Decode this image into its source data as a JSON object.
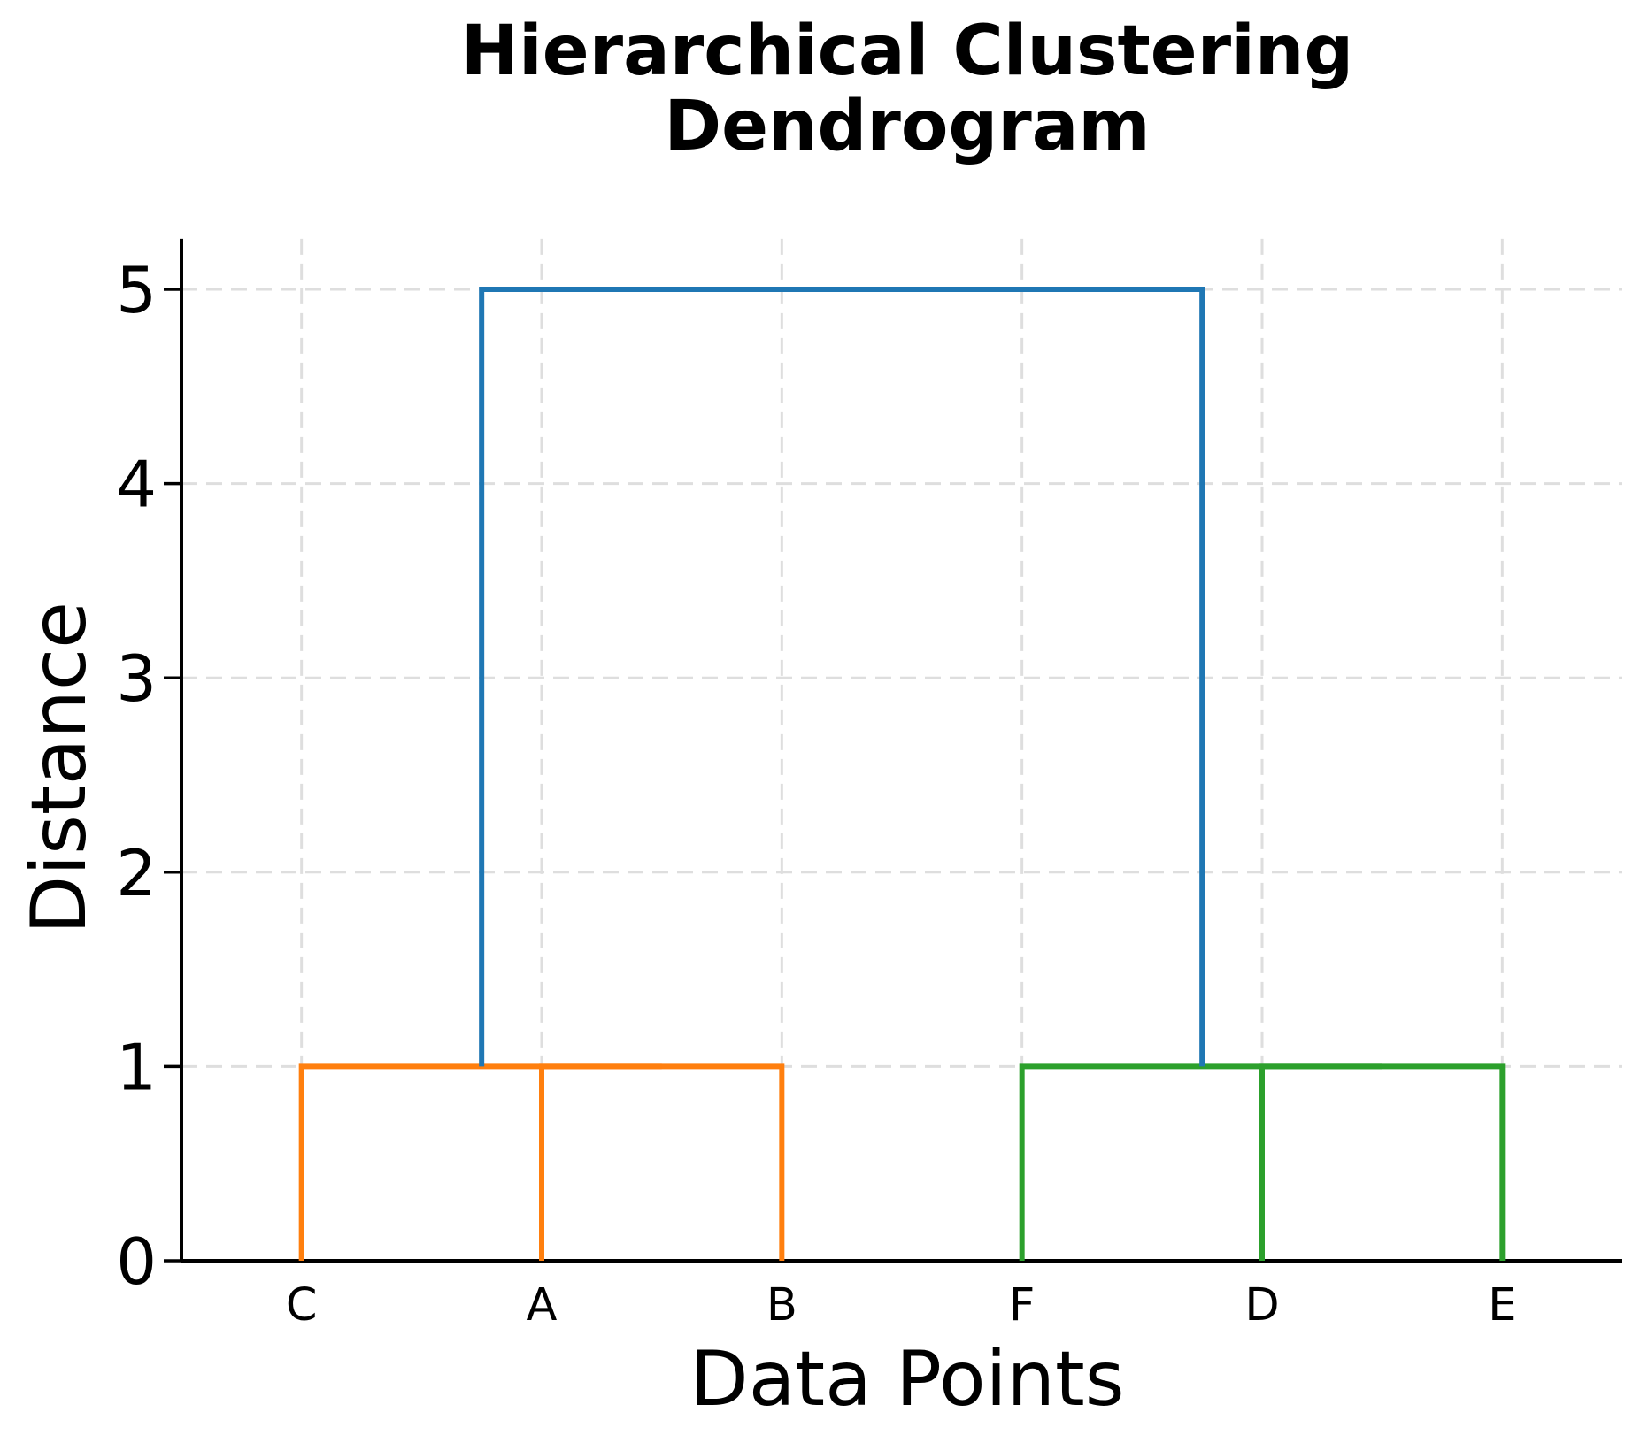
{
  "figure": {
    "background": "#ffffff"
  },
  "chart_data": {
    "type": "dendrogram",
    "title": "Hierarchical Clustering Dendrogram",
    "title_lines": [
      "Hierarchical Clustering",
      "Dendrogram"
    ],
    "xlabel": "Data Points",
    "ylabel": "Distance",
    "leaves": [
      "C",
      "A",
      "B",
      "F",
      "D",
      "E"
    ],
    "leaf_positions": [
      5,
      15,
      25,
      35,
      45,
      55
    ],
    "xlim": [
      0,
      60
    ],
    "ylim": [
      0,
      5.26
    ],
    "yticks": [
      0,
      1,
      2,
      3,
      4,
      5
    ],
    "grid": {
      "show": true,
      "style": "dashed",
      "color": "#dedede"
    },
    "merge_events": [
      {
        "merge": [
          "A",
          "B"
        ],
        "distance": 1
      },
      {
        "merge": [
          "C",
          "A+B"
        ],
        "distance": 1
      },
      {
        "merge": [
          "D",
          "E"
        ],
        "distance": 1
      },
      {
        "merge": [
          "F",
          "D+E"
        ],
        "distance": 1
      },
      {
        "merge": [
          "C+A+B",
          "F+D+E"
        ],
        "distance": 5
      }
    ],
    "links": [
      {
        "x1": 15,
        "y1": 0,
        "x2": 25,
        "y2": 0,
        "top": 1,
        "color": "#ff7f0e"
      },
      {
        "x1": 5,
        "y1": 0,
        "x2": 20,
        "y2": 1,
        "top": 1,
        "color": "#ff7f0e"
      },
      {
        "x1": 45,
        "y1": 0,
        "x2": 55,
        "y2": 0,
        "top": 1,
        "color": "#2ca02c"
      },
      {
        "x1": 35,
        "y1": 0,
        "x2": 50,
        "y2": 1,
        "top": 1,
        "color": "#2ca02c"
      },
      {
        "x1": 12.5,
        "y1": 1,
        "x2": 42.5,
        "y2": 1,
        "top": 5,
        "color": "#1f77b4"
      }
    ],
    "colors": {
      "above_threshold_link": "#1f77b4",
      "cluster_left": "#ff7f0e",
      "cluster_right": "#2ca02c",
      "axis": "#000000",
      "grid": "#dedede"
    }
  }
}
